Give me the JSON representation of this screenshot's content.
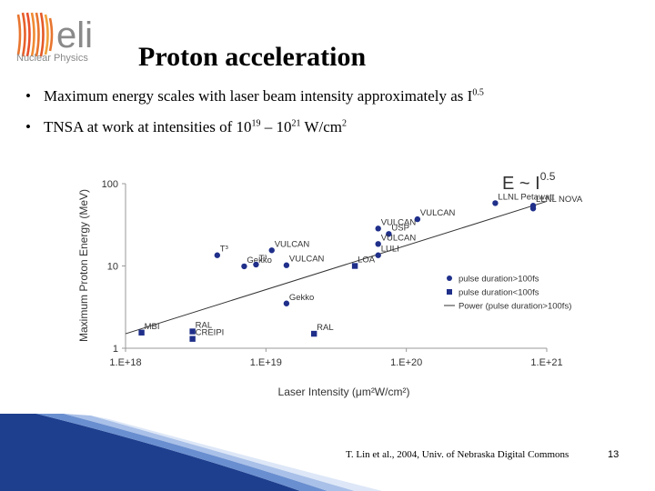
{
  "logo": {
    "mark_text": "eli",
    "subtitle": "Nuclear Physics"
  },
  "slide": {
    "title": "Proton acceleration",
    "bullet1_prefix": "Maximum energy scales with laser beam intensity approximately as I",
    "bullet1_sup": "0.5",
    "bullet2_prefix": "TNSA at work at intensities of 10",
    "bullet2_sup1": "19",
    "bullet2_mid": " – 10",
    "bullet2_sup2": "21",
    "bullet2_suffix": " W/cm",
    "bullet2_sup3": "2",
    "credit": "T. Lin et al., 2004, Univ. of Nebraska Digital Commons",
    "page_number": "13"
  },
  "colors": {
    "marker": "#1f2f8a",
    "footer_blue": "#1e3f8e",
    "logo_orange": "#e8752f"
  },
  "chart_data": {
    "type": "scatter",
    "xscale": "log",
    "yscale": "log",
    "xlim": [
      1e+18,
      1e+21
    ],
    "ylim": [
      1,
      100
    ],
    "xticks": [
      {
        "v": 1e+18,
        "label": "1.E+18"
      },
      {
        "v": 1e+19,
        "label": "1.E+19"
      },
      {
        "v": 1e+20,
        "label": "1.E+20"
      },
      {
        "v": 1e+21,
        "label": "1.E+21"
      }
    ],
    "yticks": [
      {
        "v": 1,
        "label": "1"
      },
      {
        "v": 10,
        "label": "10"
      },
      {
        "v": 100,
        "label": "100"
      }
    ],
    "xlabel": "Laser Intensity (μm²W/cm²)",
    "ylabel": "Maximum Proton Energy (MeV)",
    "formula": "E ~ I",
    "formula_exp": "0.5",
    "legend": [
      {
        "marker": "circle",
        "label": "pulse duration>100fs"
      },
      {
        "marker": "square",
        "label": "pulse duration<100fs"
      },
      {
        "marker": "line",
        "label": "Power (pulse duration>100fs)"
      }
    ],
    "series": [
      {
        "marker": "circle",
        "points": [
          {
            "x": 4.5e+18,
            "y": 13.5,
            "label": "T³"
          },
          {
            "x": 7e+18,
            "y": 9.9,
            "label": "Gekko"
          },
          {
            "x": 8.5e+18,
            "y": 10.4,
            "label": "T³"
          },
          {
            "x": 1.1e+19,
            "y": 15.5,
            "label": "VULCAN"
          },
          {
            "x": 1.4e+19,
            "y": 10.2,
            "label": "VULCAN"
          },
          {
            "x": 1.4e+19,
            "y": 3.5,
            "label": "Gekko"
          },
          {
            "x": 6.3e+19,
            "y": 28.5,
            "label": "VULCAN"
          },
          {
            "x": 7.5e+19,
            "y": 24.5,
            "label": "USP"
          },
          {
            "x": 6.3e+19,
            "y": 18.5,
            "label": "VULCAN"
          },
          {
            "x": 6.3e+19,
            "y": 13.5,
            "label": "LULI"
          },
          {
            "x": 1.2e+20,
            "y": 37,
            "label": "VULCAN"
          },
          {
            "x": 4.3e+20,
            "y": 58,
            "label": "LLNL Petawatt"
          },
          {
            "x": 8e+20,
            "y": 54,
            "label": "LLNL NOVA"
          },
          {
            "x": 8e+20,
            "y": 50,
            "label": ""
          }
        ]
      },
      {
        "marker": "square",
        "points": [
          {
            "x": 1.3e+18,
            "y": 1.55,
            "label": "MBI"
          },
          {
            "x": 3e+18,
            "y": 1.6,
            "label": "RAL"
          },
          {
            "x": 3e+18,
            "y": 1.3,
            "label": "CREIPI"
          },
          {
            "x": 2.2e+19,
            "y": 1.5,
            "label": "RAL"
          },
          {
            "x": 4.3e+19,
            "y": 10,
            "label": "LOA"
          }
        ]
      }
    ],
    "fit": {
      "x0": 1e+18,
      "y0": 1.5,
      "x1": 1e+21,
      "y1": 61
    }
  }
}
